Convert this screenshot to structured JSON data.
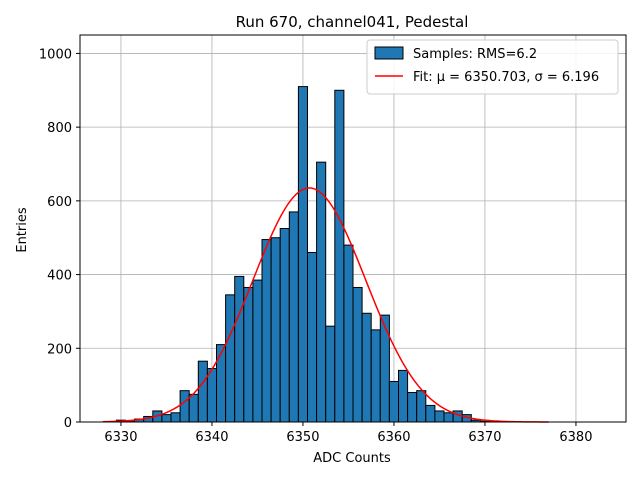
{
  "chart_data": {
    "type": "bar",
    "title": "Run 670, channel041, Pedestal",
    "xlabel": "ADC Counts",
    "ylabel": "Entries",
    "xlim": [
      6325.5,
      6385.5
    ],
    "ylim": [
      0,
      1050
    ],
    "x_ticks": [
      6330,
      6340,
      6350,
      6360,
      6370,
      6380
    ],
    "y_ticks": [
      0,
      200,
      400,
      600,
      800,
      1000
    ],
    "grid": true,
    "legend_position": "top-right",
    "bar_color": "#1f77b4",
    "bar_edge_color": "#000000",
    "fit_color": "#ff0000",
    "histogram": {
      "name": "Samples: RMS=6.2",
      "bins": [
        6330,
        6331,
        6332,
        6333,
        6334,
        6335,
        6336,
        6337,
        6338,
        6339,
        6340,
        6341,
        6342,
        6343,
        6344,
        6345,
        6346,
        6347,
        6348,
        6349,
        6350,
        6351,
        6352,
        6353,
        6354,
        6355,
        6356,
        6357,
        6358,
        6359,
        6360,
        6361,
        6362,
        6363,
        6364,
        6365,
        6366,
        6367,
        6368,
        6369,
        6370
      ],
      "counts": [
        5,
        3,
        8,
        15,
        30,
        20,
        25,
        85,
        75,
        165,
        145,
        210,
        345,
        395,
        365,
        385,
        495,
        500,
        525,
        570,
        910,
        460,
        705,
        260,
        900,
        480,
        365,
        295,
        250,
        290,
        110,
        140,
        80,
        85,
        45,
        30,
        25,
        30,
        20,
        5,
        2
      ]
    },
    "fit": {
      "name": "Fit: μ = 6350.703, σ = 6.196",
      "type": "gaussian",
      "mu": 6350.703,
      "sigma": 6.196,
      "amplitude": 635,
      "x_range": [
        6328,
        6377
      ]
    }
  }
}
